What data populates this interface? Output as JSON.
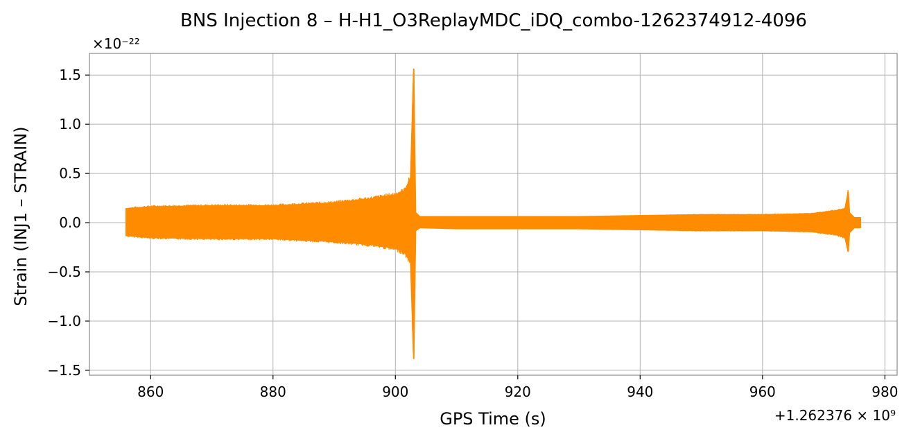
{
  "chart_data": {
    "type": "line",
    "title": "BNS Injection 8 – H-H1_O3ReplayMDC_iDQ_combo-1262374912-4096",
    "xlabel": "GPS Time (s)",
    "ylabel": "Strain (INJ1 – STRAIN)",
    "x_offset_label": "+1.262376 × 10⁹",
    "y_scale_label": "×10⁻²²",
    "xlim": [
      850,
      982
    ],
    "ylim": [
      -1.55,
      1.72
    ],
    "x_ticks": [
      860,
      880,
      900,
      920,
      940,
      960,
      980
    ],
    "x_tick_labels": [
      "860",
      "880",
      "900",
      "920",
      "940",
      "960",
      "980"
    ],
    "y_ticks": [
      -1.5,
      -1.0,
      -0.5,
      0.0,
      0.5,
      1.0,
      1.5
    ],
    "y_tick_labels": [
      "−1.5",
      "−1.0",
      "−0.5",
      "0.0",
      "0.5",
      "1.0",
      "1.5"
    ],
    "grid": true,
    "color": "#ff8c00",
    "series": [
      {
        "x": [
          856,
          860,
          870,
          880,
          890,
          896,
          900,
          901.5,
          902.5,
          903.0,
          903.1,
          903.3,
          904,
          910,
          920,
          930,
          940,
          950,
          960,
          968,
          972,
          973.5,
          974,
          974.2,
          975,
          976
        ],
        "upper": [
          0.14,
          0.16,
          0.17,
          0.17,
          0.2,
          0.24,
          0.28,
          0.32,
          0.45,
          1.56,
          0.95,
          0.1,
          0.06,
          0.06,
          0.06,
          0.06,
          0.07,
          0.08,
          0.08,
          0.09,
          0.12,
          0.14,
          0.31,
          0.1,
          0.05,
          0.05
        ],
        "lower": [
          -0.13,
          -0.15,
          -0.16,
          -0.16,
          -0.19,
          -0.22,
          -0.26,
          -0.3,
          -0.4,
          -1.38,
          -0.9,
          -0.08,
          -0.05,
          -0.06,
          -0.06,
          -0.06,
          -0.07,
          -0.08,
          -0.08,
          -0.09,
          -0.12,
          -0.15,
          -0.29,
          -0.1,
          -0.05,
          -0.05
        ]
      }
    ]
  }
}
